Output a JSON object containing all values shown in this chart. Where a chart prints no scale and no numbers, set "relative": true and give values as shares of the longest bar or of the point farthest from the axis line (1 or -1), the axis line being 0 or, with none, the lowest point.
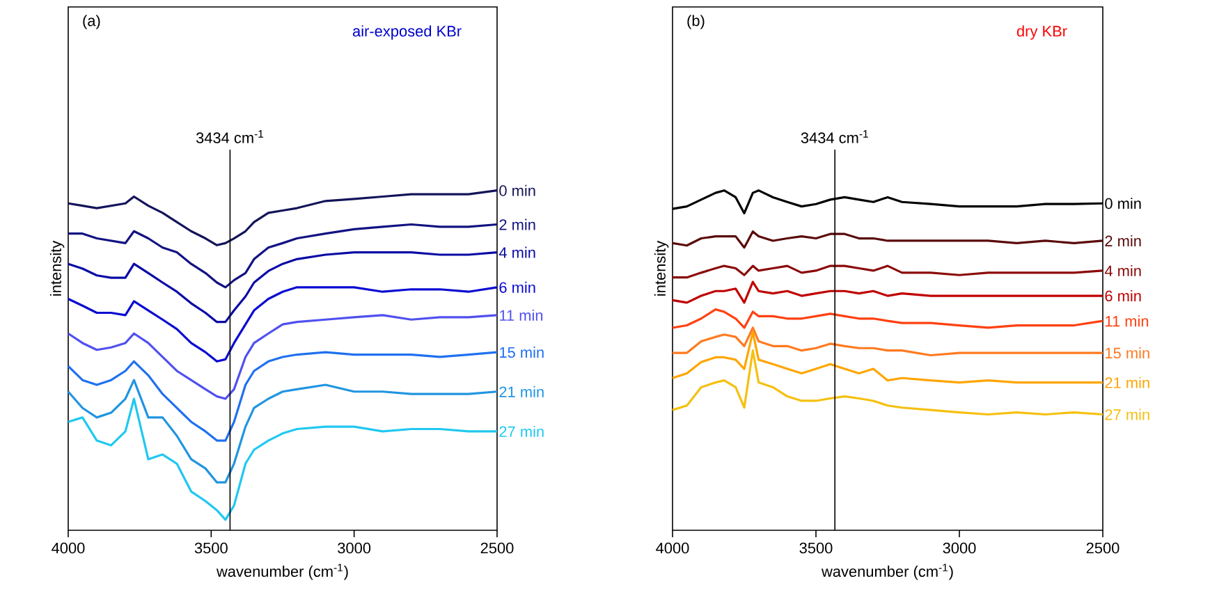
{
  "chart_data": [
    {
      "type": "line",
      "title": "air-exposed KBr",
      "annotations": [
        "(a)"
      ],
      "xlabel": "wavenumber (cm$^{-1}$)",
      "ylabel": "intensity",
      "relative": true,
      "xlim": [
        4000,
        2500
      ],
      "xticks": [
        4000,
        3500,
        3000,
        2500
      ],
      "x": [
        4000,
        3950,
        3900,
        3850,
        3800,
        3770,
        3720,
        3670,
        3620,
        3570,
        3520,
        3480,
        3450,
        3420,
        3380,
        3350,
        3300,
        3250,
        3200,
        3100,
        3000,
        2900,
        2800,
        2700,
        2600,
        2500
      ],
      "ref_lines": [
        {
          "axis": "x",
          "value": 3434,
          "label": "3434 cm$^{-1}$",
          "color": "#000000"
        }
      ],
      "series": [
        {
          "name": "0 min",
          "color": "#14145a",
          "values": [
            0.962,
            0.955,
            0.948,
            0.955,
            0.962,
            0.982,
            0.955,
            0.934,
            0.907,
            0.88,
            0.859,
            0.839,
            0.845,
            0.859,
            0.88,
            0.907,
            0.934,
            0.941,
            0.948,
            0.969,
            0.975,
            0.982,
            0.989,
            0.989,
            0.989,
            1.0
          ]
        },
        {
          "name": "2 min",
          "color": "#121282",
          "values": [
            0.873,
            0.873,
            0.859,
            0.852,
            0.845,
            0.88,
            0.859,
            0.832,
            0.818,
            0.784,
            0.757,
            0.729,
            0.715,
            0.736,
            0.757,
            0.798,
            0.832,
            0.845,
            0.859,
            0.873,
            0.886,
            0.893,
            0.9,
            0.893,
            0.893,
            0.9
          ]
        },
        {
          "name": "4 min",
          "color": "#0a0aa6",
          "values": [
            0.784,
            0.77,
            0.75,
            0.743,
            0.743,
            0.784,
            0.757,
            0.729,
            0.702,
            0.668,
            0.64,
            0.613,
            0.613,
            0.647,
            0.688,
            0.729,
            0.763,
            0.784,
            0.798,
            0.811,
            0.818,
            0.818,
            0.818,
            0.811,
            0.811,
            0.818
          ]
        },
        {
          "name": "6 min",
          "color": "#0a0ad2",
          "values": [
            0.681,
            0.661,
            0.64,
            0.64,
            0.633,
            0.674,
            0.647,
            0.62,
            0.592,
            0.551,
            0.524,
            0.497,
            0.503,
            0.551,
            0.606,
            0.647,
            0.681,
            0.702,
            0.715,
            0.715,
            0.715,
            0.702,
            0.709,
            0.709,
            0.702,
            0.715
          ]
        },
        {
          "name": "11 min",
          "color": "#5050f0",
          "values": [
            0.579,
            0.551,
            0.531,
            0.538,
            0.551,
            0.579,
            0.551,
            0.51,
            0.469,
            0.442,
            0.415,
            0.394,
            0.387,
            0.415,
            0.51,
            0.551,
            0.579,
            0.606,
            0.613,
            0.62,
            0.627,
            0.633,
            0.62,
            0.627,
            0.627,
            0.633
          ]
        },
        {
          "name": "15 min",
          "color": "#2070f0",
          "values": [
            0.483,
            0.442,
            0.428,
            0.442,
            0.469,
            0.497,
            0.456,
            0.401,
            0.36,
            0.319,
            0.291,
            0.264,
            0.264,
            0.319,
            0.428,
            0.469,
            0.497,
            0.51,
            0.517,
            0.524,
            0.517,
            0.517,
            0.517,
            0.51,
            0.517,
            0.524
          ]
        },
        {
          "name": "21 min",
          "color": "#2095e0",
          "values": [
            0.408,
            0.36,
            0.332,
            0.346,
            0.387,
            0.442,
            0.332,
            0.332,
            0.278,
            0.209,
            0.182,
            0.141,
            0.141,
            0.196,
            0.305,
            0.36,
            0.387,
            0.408,
            0.415,
            0.428,
            0.408,
            0.408,
            0.401,
            0.401,
            0.401,
            0.408
          ]
        },
        {
          "name": "27 min",
          "color": "#20c8f0",
          "values": [
            0.319,
            0.332,
            0.264,
            0.25,
            0.291,
            0.387,
            0.209,
            0.223,
            0.196,
            0.114,
            0.086,
            0.059,
            0.031,
            0.073,
            0.196,
            0.237,
            0.264,
            0.285,
            0.298,
            0.305,
            0.305,
            0.291,
            0.298,
            0.298,
            0.291,
            0.291
          ]
        }
      ]
    },
    {
      "type": "line",
      "title": "dry KBr",
      "annotations": [
        "(b)"
      ],
      "xlabel": "wavenumber (cm$^{-1}$)",
      "ylabel": "intensity",
      "relative": true,
      "xlim": [
        4000,
        2500
      ],
      "xticks": [
        4000,
        3500,
        3000,
        2500
      ],
      "x": [
        4000,
        3950,
        3900,
        3850,
        3820,
        3780,
        3750,
        3720,
        3700,
        3650,
        3600,
        3550,
        3500,
        3450,
        3400,
        3350,
        3300,
        3250,
        3200,
        3100,
        3000,
        2900,
        2800,
        2700,
        2600,
        2500
      ],
      "ref_lines": [
        {
          "axis": "x",
          "value": 3434,
          "label": "3434 cm$^{-1}$",
          "color": "#000000"
        }
      ],
      "series": [
        {
          "name": "0 min",
          "color": "#000000",
          "values": [
            0.946,
            0.953,
            0.973,
            0.993,
            1.0,
            0.98,
            0.933,
            0.993,
            1.0,
            0.98,
            0.966,
            0.953,
            0.96,
            0.973,
            0.98,
            0.973,
            0.966,
            0.98,
            0.966,
            0.96,
            0.953,
            0.953,
            0.953,
            0.96,
            0.96,
            0.962
          ]
        },
        {
          "name": "2 min",
          "color": "#5a0a0a",
          "values": [
            0.845,
            0.838,
            0.859,
            0.865,
            0.865,
            0.865,
            0.832,
            0.879,
            0.865,
            0.852,
            0.859,
            0.865,
            0.859,
            0.872,
            0.872,
            0.859,
            0.859,
            0.852,
            0.852,
            0.852,
            0.852,
            0.852,
            0.845,
            0.852,
            0.845,
            0.852
          ]
        },
        {
          "name": "4 min",
          "color": "#8b0a0a",
          "values": [
            0.744,
            0.744,
            0.758,
            0.771,
            0.778,
            0.771,
            0.751,
            0.778,
            0.764,
            0.771,
            0.778,
            0.758,
            0.764,
            0.778,
            0.778,
            0.771,
            0.764,
            0.778,
            0.758,
            0.758,
            0.751,
            0.758,
            0.758,
            0.758,
            0.758,
            0.764
          ]
        },
        {
          "name": "6 min",
          "color": "#c00000",
          "values": [
            0.677,
            0.67,
            0.69,
            0.704,
            0.704,
            0.711,
            0.67,
            0.731,
            0.704,
            0.697,
            0.704,
            0.69,
            0.697,
            0.704,
            0.704,
            0.697,
            0.704,
            0.69,
            0.697,
            0.69,
            0.69,
            0.69,
            0.69,
            0.69,
            0.69,
            0.69
          ]
        },
        {
          "name": "11 min",
          "color": "#ff4010",
          "values": [
            0.596,
            0.603,
            0.623,
            0.65,
            0.643,
            0.623,
            0.596,
            0.643,
            0.63,
            0.63,
            0.623,
            0.623,
            0.63,
            0.637,
            0.63,
            0.623,
            0.623,
            0.616,
            0.61,
            0.61,
            0.603,
            0.596,
            0.603,
            0.603,
            0.603,
            0.616
          ]
        },
        {
          "name": "15 min",
          "color": "#ff7a20",
          "values": [
            0.522,
            0.522,
            0.556,
            0.569,
            0.576,
            0.569,
            0.542,
            0.596,
            0.556,
            0.542,
            0.542,
            0.529,
            0.536,
            0.549,
            0.542,
            0.536,
            0.536,
            0.529,
            0.529,
            0.515,
            0.522,
            0.522,
            0.522,
            0.522,
            0.522,
            0.522
          ]
        },
        {
          "name": "21 min",
          "color": "#ffa500",
          "values": [
            0.448,
            0.462,
            0.495,
            0.509,
            0.509,
            0.502,
            0.475,
            0.583,
            0.502,
            0.489,
            0.475,
            0.462,
            0.475,
            0.489,
            0.475,
            0.462,
            0.475,
            0.441,
            0.448,
            0.441,
            0.435,
            0.441,
            0.435,
            0.435,
            0.435,
            0.435
          ]
        },
        {
          "name": "27 min",
          "color": "#f5c010",
          "values": [
            0.354,
            0.367,
            0.421,
            0.435,
            0.441,
            0.421,
            0.361,
            0.529,
            0.435,
            0.421,
            0.394,
            0.381,
            0.381,
            0.388,
            0.394,
            0.388,
            0.381,
            0.367,
            0.361,
            0.354,
            0.347,
            0.341,
            0.347,
            0.341,
            0.347,
            0.341
          ]
        }
      ]
    }
  ]
}
